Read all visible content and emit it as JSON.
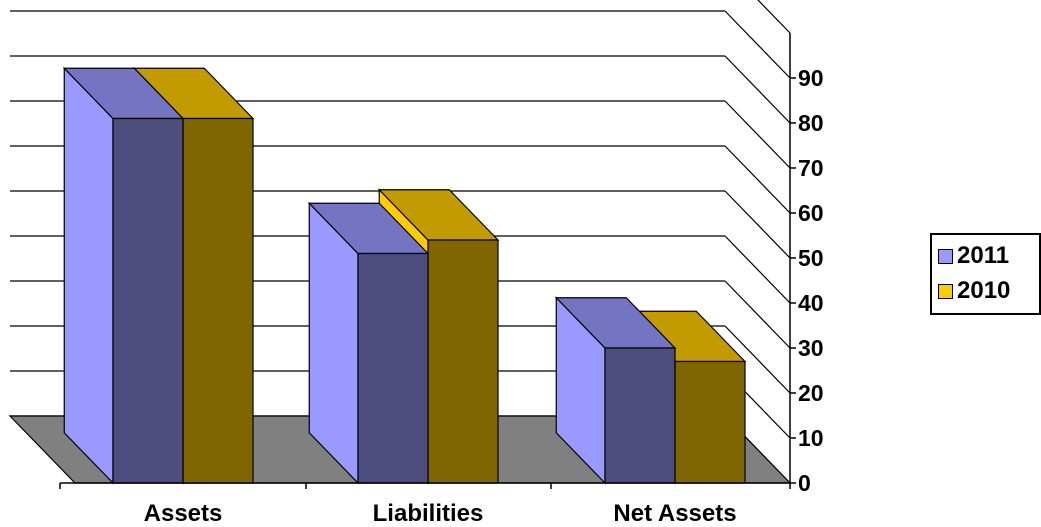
{
  "chart_data": {
    "type": "bar",
    "style": "3d-clustered-column",
    "categories": [
      "Assets",
      "Liabilities",
      "Net Assets"
    ],
    "series": [
      {
        "name": "2011",
        "values": [
          81,
          51,
          30
        ],
        "color": "#9999FF"
      },
      {
        "name": "2010",
        "values": [
          81,
          54,
          27
        ],
        "color": "#FFCC00"
      }
    ],
    "ylim": [
      0,
      90
    ],
    "yticks": [
      "0",
      "10",
      "20",
      "30",
      "40",
      "50",
      "60",
      "70",
      "80",
      "90"
    ],
    "axis_position": "right",
    "grid": true,
    "legend_position": "right"
  }
}
